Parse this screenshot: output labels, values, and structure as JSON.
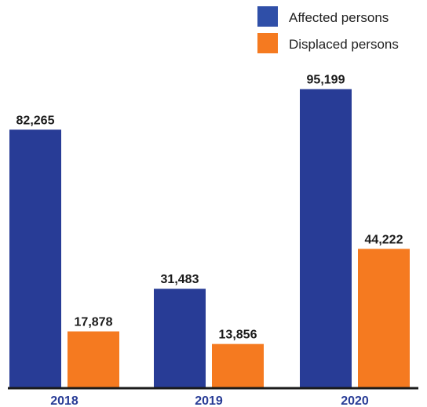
{
  "chart_data": {
    "type": "bar",
    "categories": [
      "2018",
      "2019",
      "2020"
    ],
    "series": [
      {
        "name": "Affected persons",
        "values": [
          82265,
          31483,
          95199
        ],
        "labels": [
          "82,265",
          "31,483",
          "95,199"
        ],
        "color": "#283c96"
      },
      {
        "name": "Displaced persons",
        "values": [
          17878,
          13856,
          44222
        ],
        "labels": [
          "17,878",
          "13,856",
          "44,222"
        ],
        "color": "#f57a20"
      }
    ],
    "ylim": [
      0,
      100000
    ],
    "grid": false,
    "legend_position": "top-right",
    "category_label_color": "#283c96",
    "legend_swatch_colors": [
      "#2f4fa8",
      "#f57a20"
    ]
  }
}
